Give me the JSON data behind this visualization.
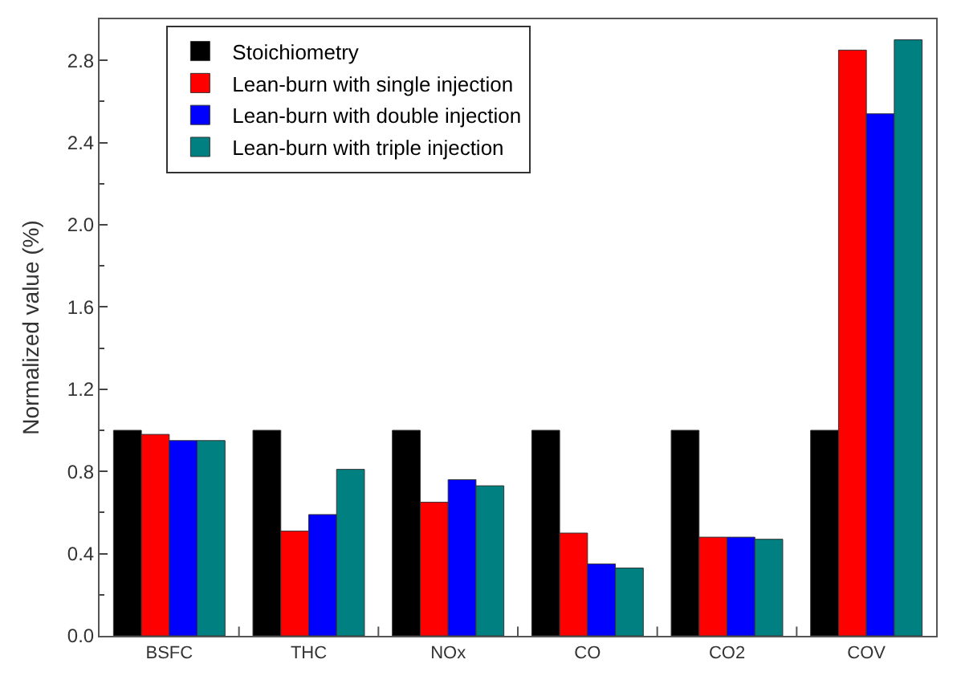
{
  "chart_data": {
    "type": "bar",
    "ylabel": "Normalized value (%)",
    "categories": [
      "BSFC",
      "THC",
      "NOx",
      "CO",
      "CO2",
      "COV"
    ],
    "series": [
      {
        "name": "Stoichiometry",
        "color": "#000000",
        "values": [
          1.0,
          1.0,
          1.0,
          1.0,
          1.0,
          1.0
        ]
      },
      {
        "name": "Lean-burn with single injection",
        "color": "#ff0000",
        "values": [
          0.98,
          0.51,
          0.65,
          0.5,
          0.48,
          2.85
        ]
      },
      {
        "name": "Lean-burn with double injection",
        "color": "#0000ff",
        "values": [
          0.95,
          0.59,
          0.76,
          0.35,
          0.48,
          2.54
        ]
      },
      {
        "name": "Lean-burn with triple injection",
        "color": "#008080",
        "values": [
          0.95,
          0.81,
          0.73,
          0.33,
          0.47,
          2.9
        ]
      }
    ],
    "ylim": [
      0,
      3.0
    ],
    "yticks": [
      {
        "value": 0,
        "label": "0.0"
      },
      0.4,
      0.8,
      1.2,
      1.6,
      {
        "value": 2,
        "label": "2.0"
      },
      2.4,
      2.8
    ],
    "grid": false,
    "legend": "top left"
  }
}
